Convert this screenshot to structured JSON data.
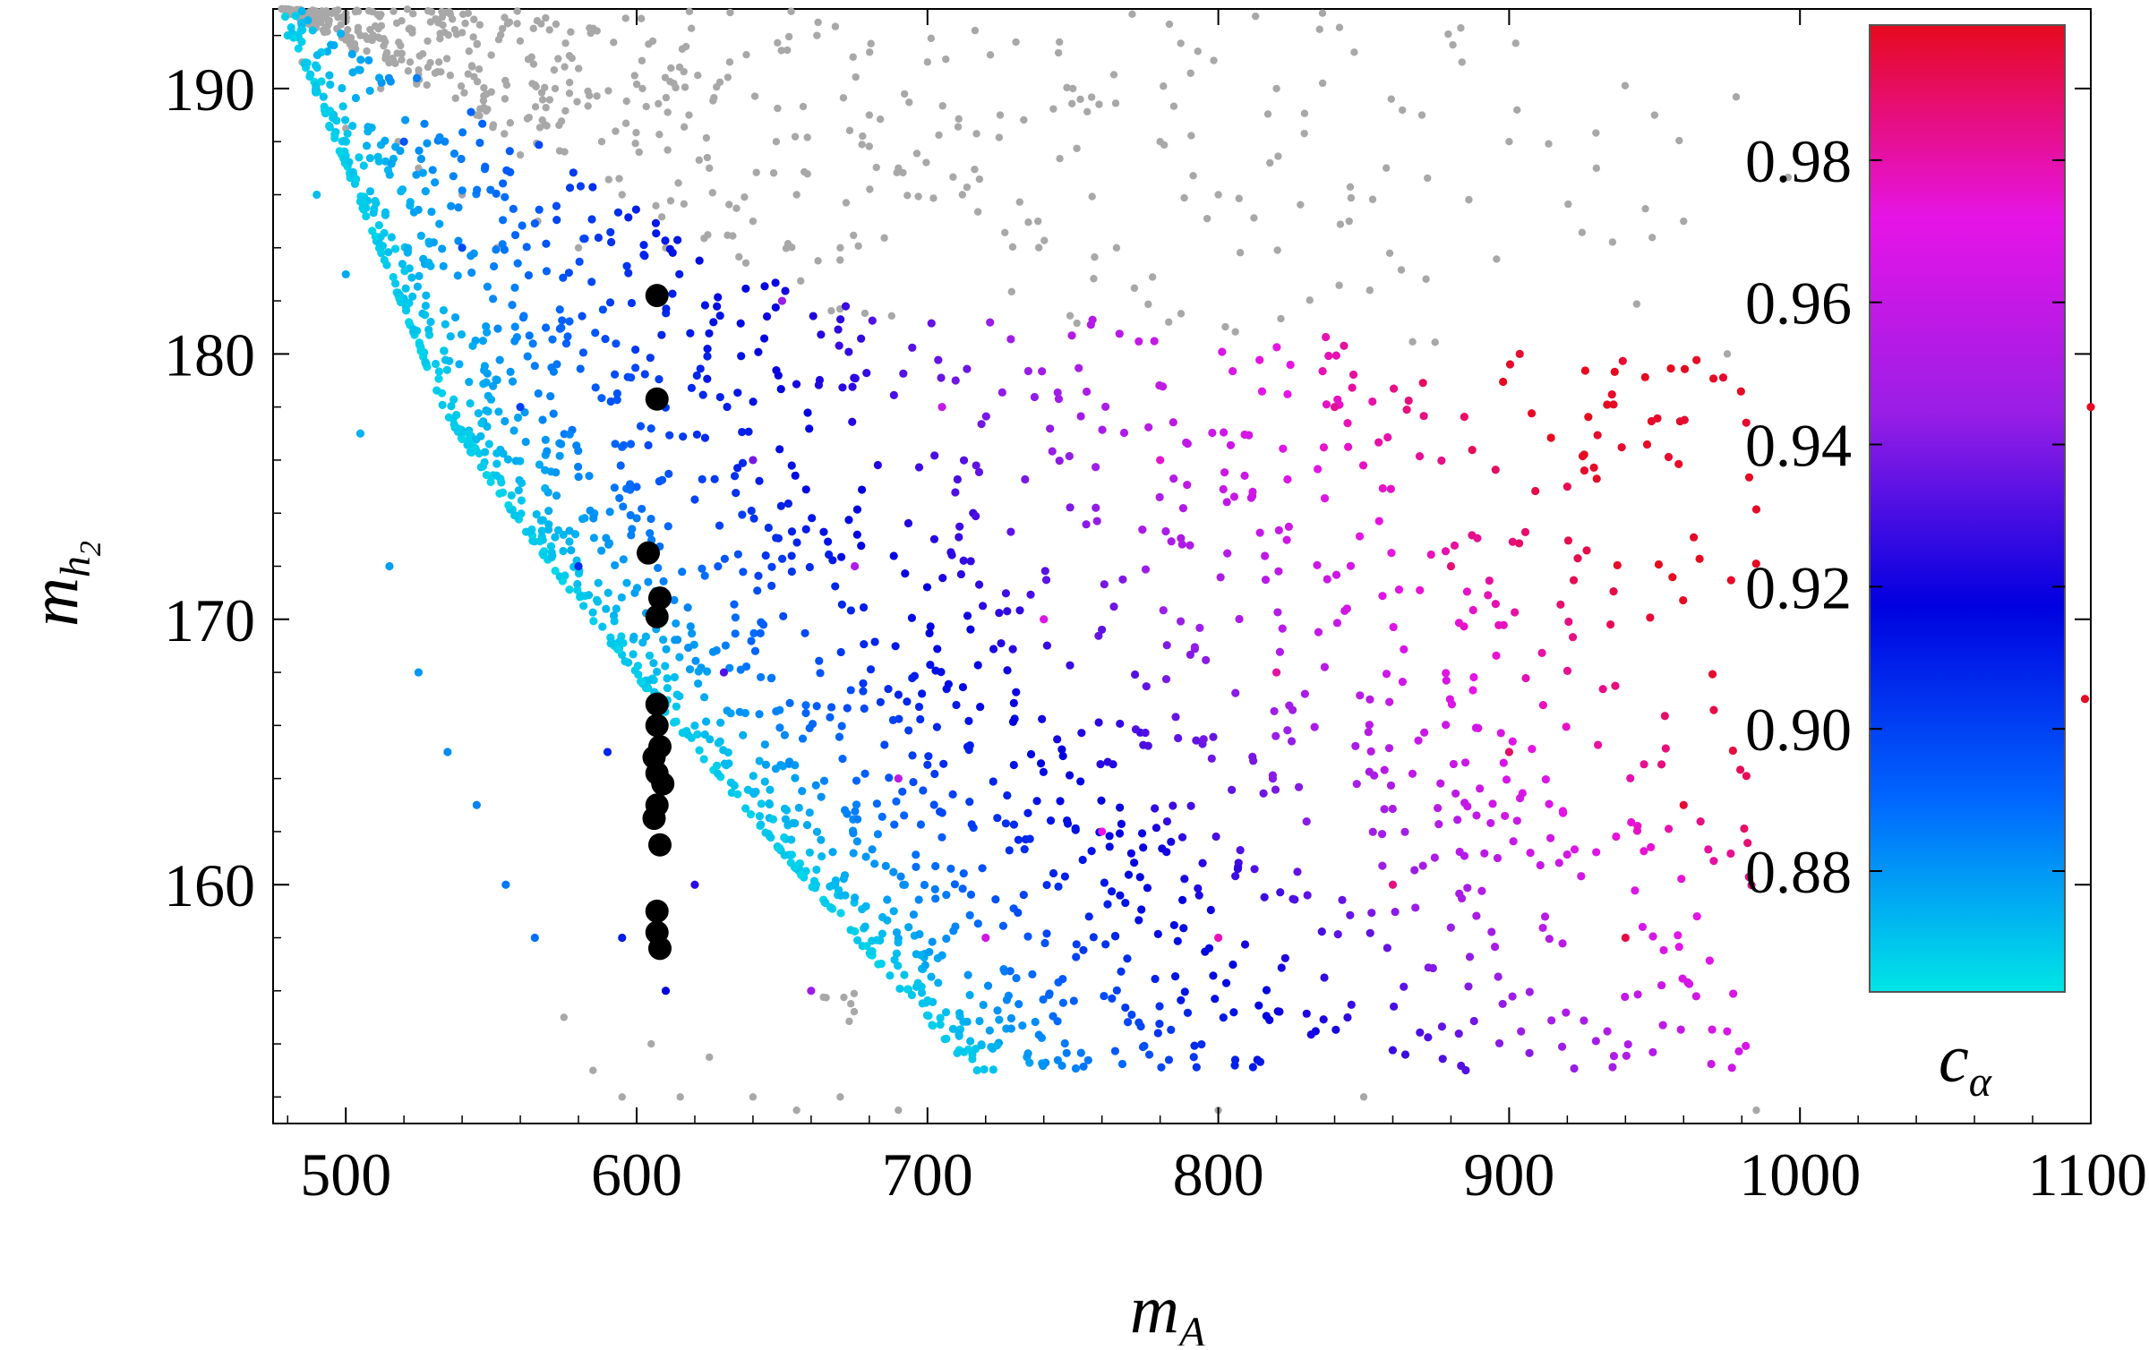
{
  "chart_data": {
    "type": "scatter",
    "title": "",
    "xlabel": "m",
    "xlabel_sub": "A",
    "ylabel": "m",
    "ylabel_sub": "h",
    "ylabel_subsub": "2",
    "xlim": [
      475,
      1100
    ],
    "ylim": [
      151,
      193
    ],
    "xticks": [
      500,
      600,
      700,
      800,
      900,
      1000,
      1100
    ],
    "xtick_labels": [
      "500",
      "600",
      "700",
      "800",
      "900",
      "1000",
      "1100"
    ],
    "yticks": [
      160,
      170,
      180,
      190
    ],
    "ytick_labels": [
      "160",
      "170",
      "180",
      "190"
    ],
    "grid": false,
    "colorbar": {
      "label": "c",
      "label_sub": "α",
      "range": [
        0.863,
        0.999
      ],
      "ticks": [
        0.88,
        0.9,
        0.92,
        0.94,
        0.96,
        0.98
      ],
      "tick_labels": [
        "0.88",
        "0.90",
        "0.92",
        "0.94",
        "0.96",
        "0.98"
      ],
      "colors": [
        "#00e6e6",
        "#0066ff",
        "#0000e0",
        "#9a1ee6",
        "#e614e6",
        "#e60a1e"
      ]
    },
    "series": [
      {
        "kind": "excluded",
        "color": "#a8a8a8",
        "description_points": [
          [
            479,
            193
          ],
          [
            485,
            191
          ],
          [
            490,
            190
          ],
          [
            496,
            189
          ],
          [
            500,
            188.5
          ],
          [
            505,
            192
          ],
          [
            512,
            190
          ],
          [
            518,
            188
          ],
          [
            525,
            187
          ],
          [
            532,
            191
          ],
          [
            540,
            186
          ],
          [
            545,
            189
          ],
          [
            552,
            184
          ],
          [
            560,
            187.5
          ],
          [
            566,
            185
          ],
          [
            572,
            190
          ],
          [
            580,
            184
          ],
          [
            588,
            188
          ],
          [
            595,
            186
          ],
          [
            602,
            190
          ],
          [
            610,
            184
          ],
          [
            618,
            189
          ],
          [
            625,
            187
          ],
          [
            632,
            191
          ],
          [
            640,
            185
          ],
          [
            648,
            188
          ],
          [
            655,
            186
          ],
          [
            662,
            192
          ],
          [
            670,
            184
          ],
          [
            680,
            189
          ],
          [
            690,
            187
          ],
          [
            700,
            191
          ],
          [
            712,
            186
          ],
          [
            725,
            189
          ],
          [
            738,
            185
          ],
          [
            750,
            190
          ],
          [
            765,
            184
          ],
          [
            780,
            188
          ],
          [
            800,
            186
          ],
          [
            820,
            190
          ],
          [
            845,
            185
          ],
          [
            870,
            189
          ],
          [
            900,
            188
          ],
          [
            930,
            187
          ],
          [
            950,
            189
          ],
          [
            960,
            185
          ],
          [
            975,
            180
          ],
          [
            575,
            155
          ],
          [
            585,
            153
          ],
          [
            595,
            152
          ],
          [
            605,
            154
          ],
          [
            615,
            152
          ],
          [
            625,
            153.5
          ],
          [
            640,
            152
          ],
          [
            655,
            151.5
          ],
          [
            670,
            152
          ],
          [
            690,
            151.5
          ],
          [
            800,
            151.5
          ],
          [
            850,
            152
          ],
          [
            985,
            151.5
          ]
        ]
      },
      {
        "kind": "allowed",
        "colored_by": "c_alpha",
        "sample_points": [
          [
            480,
            192,
            0.869
          ],
          [
            490,
            186,
            0.871
          ],
          [
            500,
            183,
            0.876
          ],
          [
            505,
            177,
            0.874
          ],
          [
            515,
            172,
            0.878
          ],
          [
            525,
            168,
            0.88
          ],
          [
            535,
            165,
            0.882
          ],
          [
            545,
            163,
            0.884
          ],
          [
            555,
            160,
            0.886
          ],
          [
            565,
            158,
            0.888
          ],
          [
            520,
            188,
            0.895
          ],
          [
            540,
            184,
            0.898
          ],
          [
            560,
            178,
            0.901
          ],
          [
            580,
            172,
            0.905
          ],
          [
            590,
            165,
            0.908
          ],
          [
            595,
            158,
            0.91
          ],
          [
            610,
            156,
            0.918
          ],
          [
            620,
            160,
            0.925
          ],
          [
            630,
            168,
            0.932
          ],
          [
            640,
            176,
            0.938
          ],
          [
            650,
            182,
            0.944
          ],
          [
            660,
            156,
            0.946
          ],
          [
            675,
            172,
            0.952
          ],
          [
            690,
            164,
            0.956
          ],
          [
            705,
            178,
            0.96
          ],
          [
            720,
            158,
            0.964
          ],
          [
            740,
            170,
            0.968
          ],
          [
            760,
            162,
            0.972
          ],
          [
            780,
            176,
            0.975
          ],
          [
            800,
            158,
            0.978
          ],
          [
            820,
            168,
            0.981
          ],
          [
            840,
            178,
            0.983
          ],
          [
            860,
            160,
            0.986
          ],
          [
            880,
            172,
            0.988
          ],
          [
            900,
            165,
            0.99
          ],
          [
            920,
            175,
            0.992
          ],
          [
            940,
            158,
            0.994
          ],
          [
            960,
            163,
            0.996
          ],
          [
            1100,
            178,
            0.998
          ],
          [
            1098,
            167,
            0.998
          ]
        ]
      },
      {
        "kind": "benchmark",
        "color": "#000000",
        "points": [
          [
            607,
            182.2
          ],
          [
            607,
            178.3
          ],
          [
            604,
            172.5
          ],
          [
            608,
            170.8
          ],
          [
            607,
            170.1
          ],
          [
            607,
            166.8
          ],
          [
            607,
            166.0
          ],
          [
            608,
            165.2
          ],
          [
            606,
            164.8
          ],
          [
            607,
            164.2
          ],
          [
            609,
            163.8
          ],
          [
            607,
            163.0
          ],
          [
            606,
            162.5
          ],
          [
            608,
            161.5
          ],
          [
            607,
            159.0
          ],
          [
            607,
            158.2
          ],
          [
            608,
            157.6
          ]
        ]
      }
    ]
  }
}
